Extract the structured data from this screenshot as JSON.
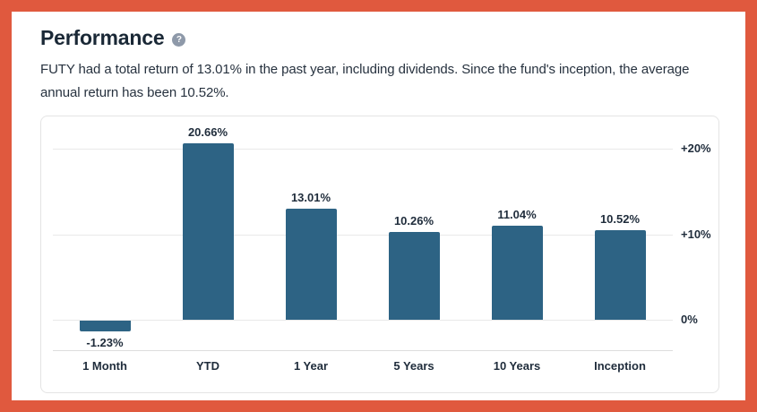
{
  "window": {
    "border_color": "#e0593e",
    "background": "#ffffff"
  },
  "header": {
    "title": "Performance",
    "help_glyph": "?",
    "description": "FUTY had a total return of 13.01% in the past year, including dividends. Since the fund's inception, the average annual return has been 10.52%."
  },
  "chart_data": {
    "type": "bar",
    "title": "",
    "xlabel": "",
    "ylabel": "",
    "categories": [
      "1 Month",
      "YTD",
      "1 Year",
      "5 Years",
      "10 Years",
      "Inception"
    ],
    "values": [
      -1.23,
      20.66,
      13.01,
      10.26,
      11.04,
      10.52
    ],
    "value_labels": [
      "-1.23%",
      "20.66%",
      "13.01%",
      "10.26%",
      "11.04%",
      "10.52%"
    ],
    "y_ticks": [
      {
        "label": "+20%",
        "value": 20
      },
      {
        "label": "+10%",
        "value": 10
      },
      {
        "label": "0%",
        "value": 0
      }
    ],
    "ylim": [
      -8.5,
      23.8
    ],
    "unit": "%",
    "bar_color": "#2d6384",
    "grid": true,
    "legend": false,
    "tick_side": "right"
  }
}
